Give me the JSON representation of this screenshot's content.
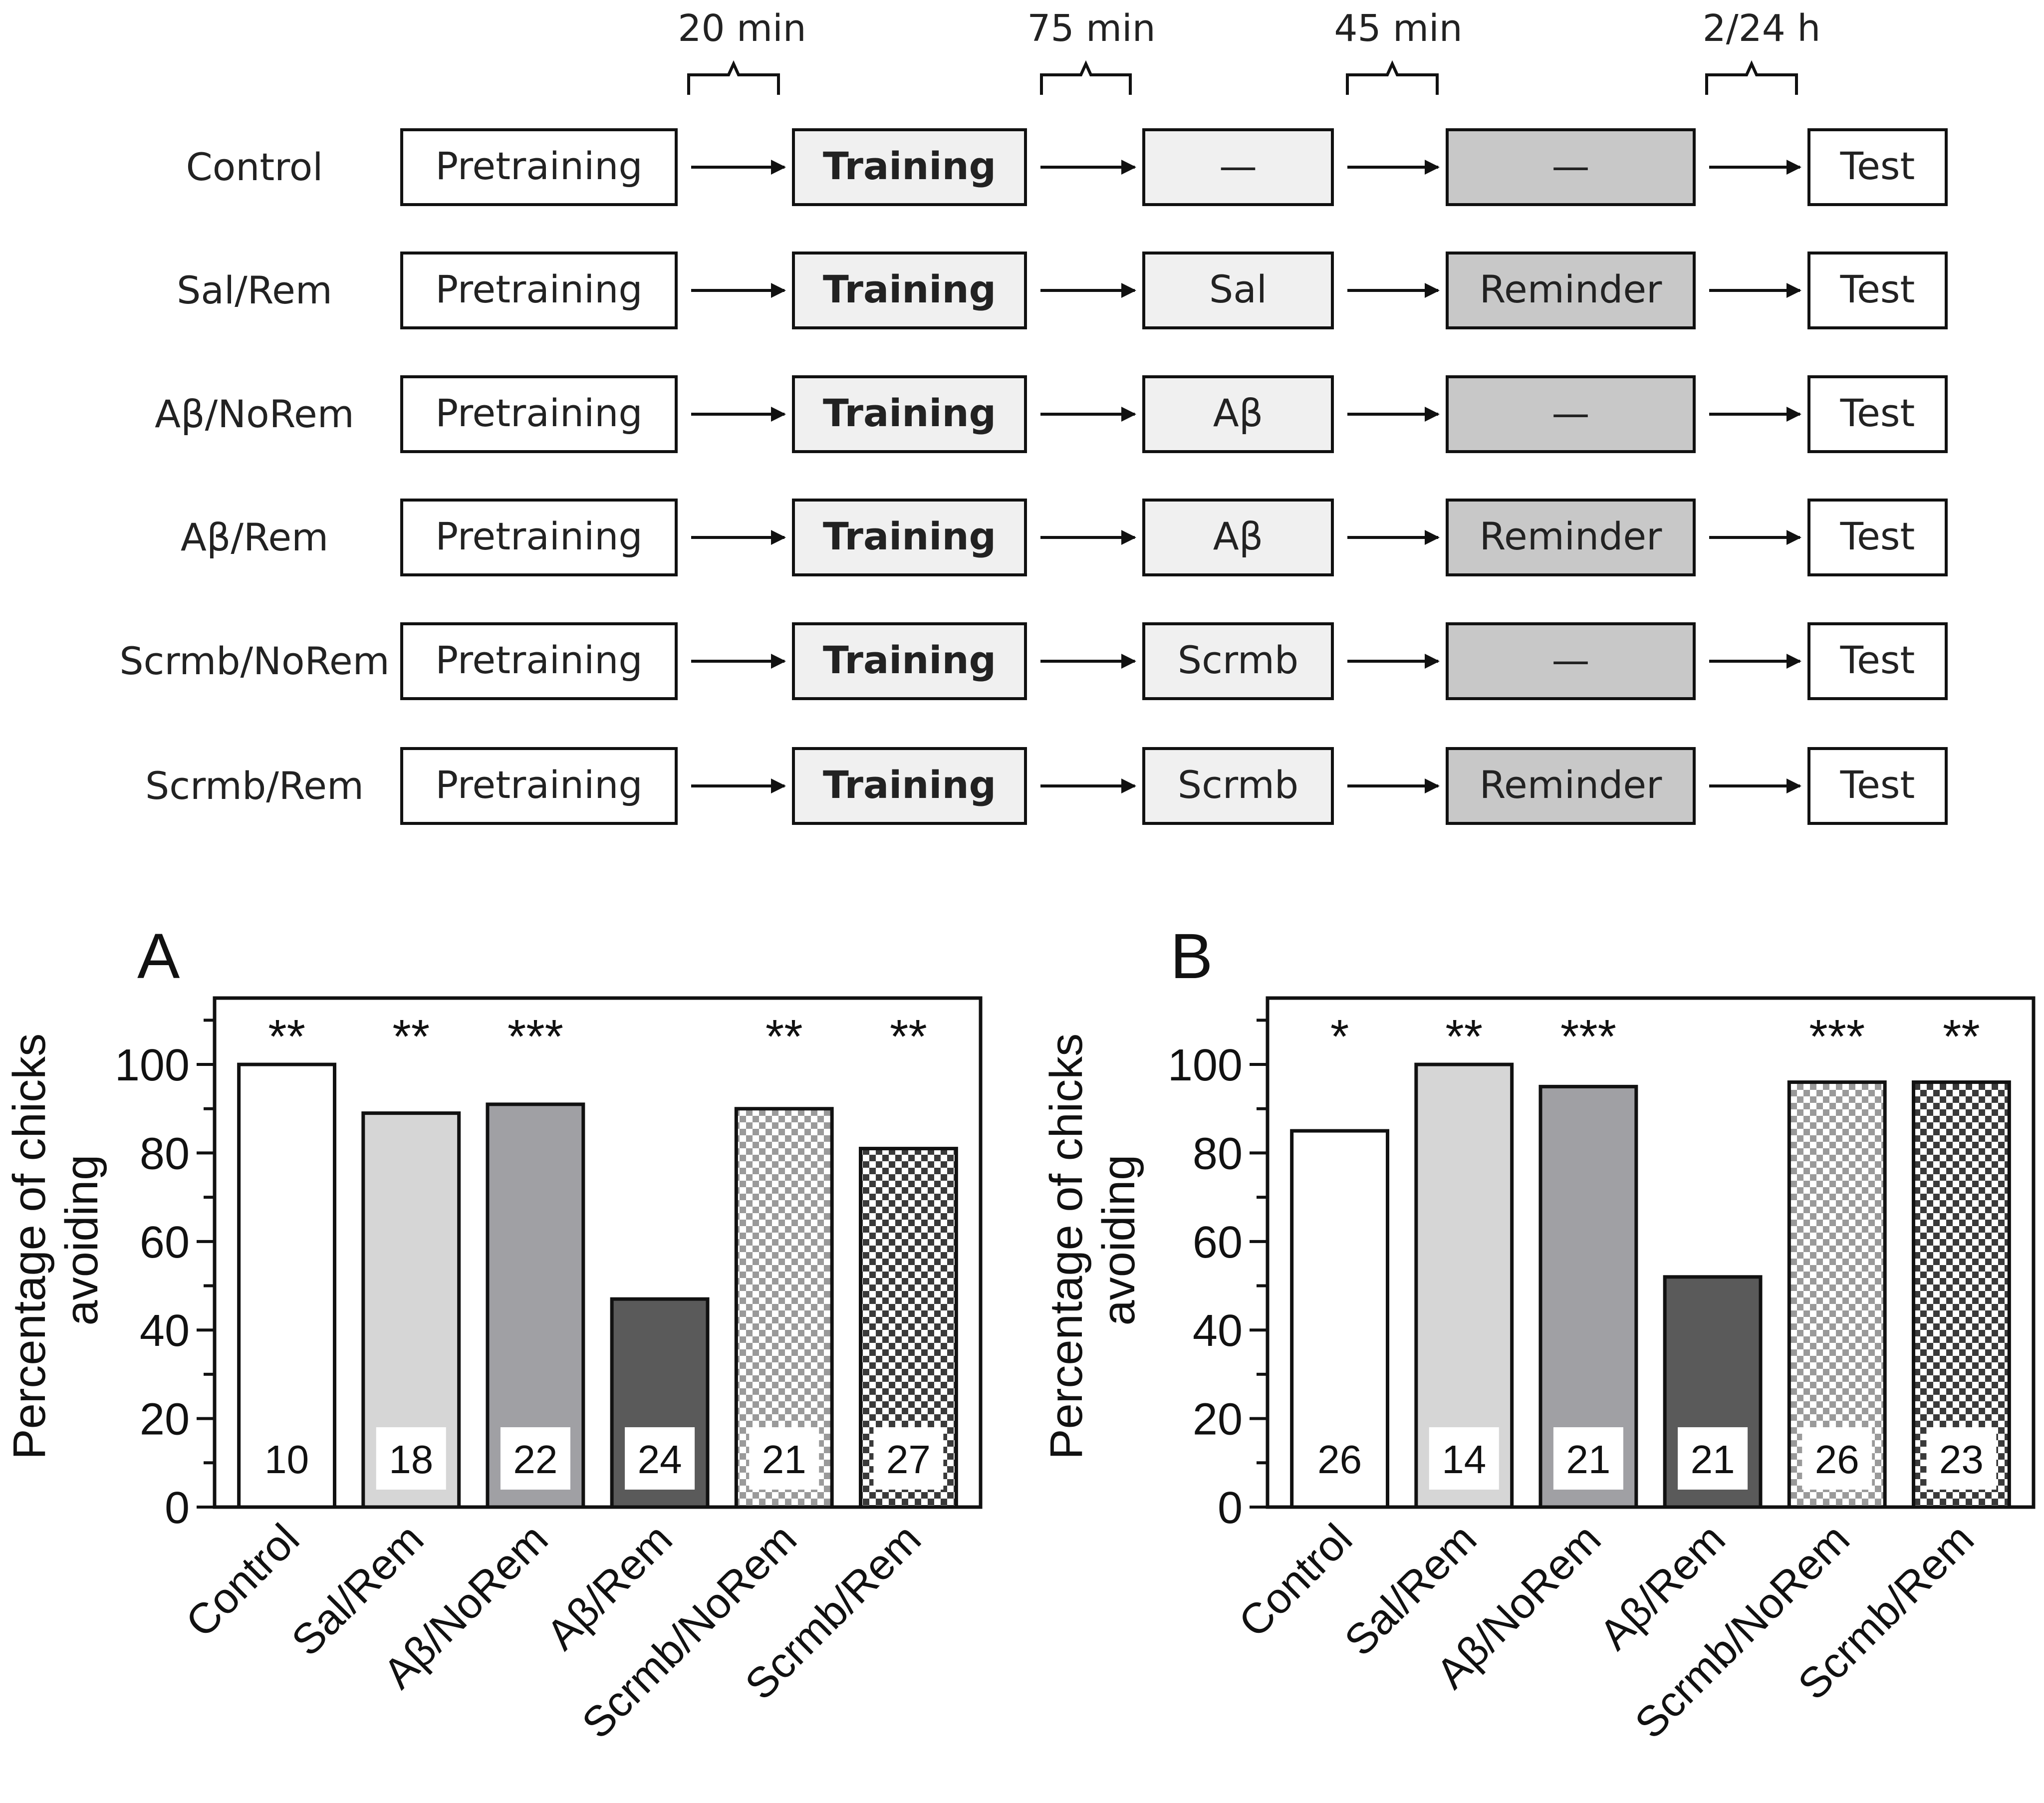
{
  "schematic": {
    "intervals": [
      "20 min",
      "75 min",
      "45 min",
      "2/24 h"
    ],
    "rows": [
      {
        "label": "Control",
        "pre": "Pretraining",
        "train": "Training",
        "inj": "—",
        "rem": "—",
        "test": "Test"
      },
      {
        "label": "Sal/Rem",
        "pre": "Pretraining",
        "train": "Training",
        "inj": "Sal",
        "rem": "Reminder",
        "test": "Test"
      },
      {
        "label": "Aβ/NoRem",
        "pre": "Pretraining",
        "train": "Training",
        "inj": "Aβ",
        "rem": "—",
        "test": "Test"
      },
      {
        "label": "Aβ/Rem",
        "pre": "Pretraining",
        "train": "Training",
        "inj": "Aβ",
        "rem": "Reminder",
        "test": "Test"
      },
      {
        "label": "Scrmb/NoRem",
        "pre": "Pretraining",
        "train": "Training",
        "inj": "Scrmb",
        "rem": "—",
        "test": "Test"
      },
      {
        "label": "Scrmb/Rem",
        "pre": "Pretraining",
        "train": "Training",
        "inj": "Scrmb",
        "rem": "Reminder",
        "test": "Test"
      }
    ]
  },
  "colors": {
    "box_light": "#f0f0f0",
    "box_reminder": "#c8c8c8",
    "bar_control": "#ffffff",
    "bar_sal": "#d6d6d6",
    "bar_abnorem": "#a0a0a4",
    "bar_abrem": "#5a5a5a",
    "checker_light": "#9a9a9a",
    "checker_dark": "#3a3a3a"
  },
  "chart_data": [
    {
      "panel": "A",
      "type": "bar",
      "ylabel": "Percentage of chicks avoiding",
      "ylim": [
        0,
        115
      ],
      "yticks": [
        0,
        20,
        40,
        60,
        80,
        100
      ],
      "categories": [
        "Control",
        "Sal/Rem",
        "Aβ/NoRem",
        "Aβ/Rem",
        "Scrmb/NoRem",
        "Scrmb/Rem"
      ],
      "values": [
        100,
        89,
        91,
        47,
        90,
        81
      ],
      "n": [
        "10",
        "18",
        "22",
        "24",
        "21",
        "27"
      ],
      "significance": [
        "**",
        "**",
        "***",
        "",
        "**",
        "**"
      ],
      "fills": [
        "white",
        "lightgray",
        "midgray",
        "darkgray",
        "checker-light",
        "checker-dark"
      ]
    },
    {
      "panel": "B",
      "type": "bar",
      "ylabel": "Percentage of chicks avoiding",
      "ylim": [
        0,
        115
      ],
      "yticks": [
        0,
        20,
        40,
        60,
        80,
        100
      ],
      "categories": [
        "Control",
        "Sal/Rem",
        "Aβ/NoRem",
        "Aβ/Rem",
        "Scrmb/NoRem",
        "Scrmb/Rem"
      ],
      "values": [
        85,
        100,
        95,
        52,
        96,
        96
      ],
      "n": [
        "26",
        "14",
        "21",
        "21",
        "26",
        "23"
      ],
      "significance": [
        "*",
        "**",
        "***",
        "",
        "***",
        "**"
      ],
      "fills": [
        "white",
        "lightgray",
        "midgray",
        "darkgray",
        "checker-light",
        "checker-dark"
      ]
    }
  ]
}
